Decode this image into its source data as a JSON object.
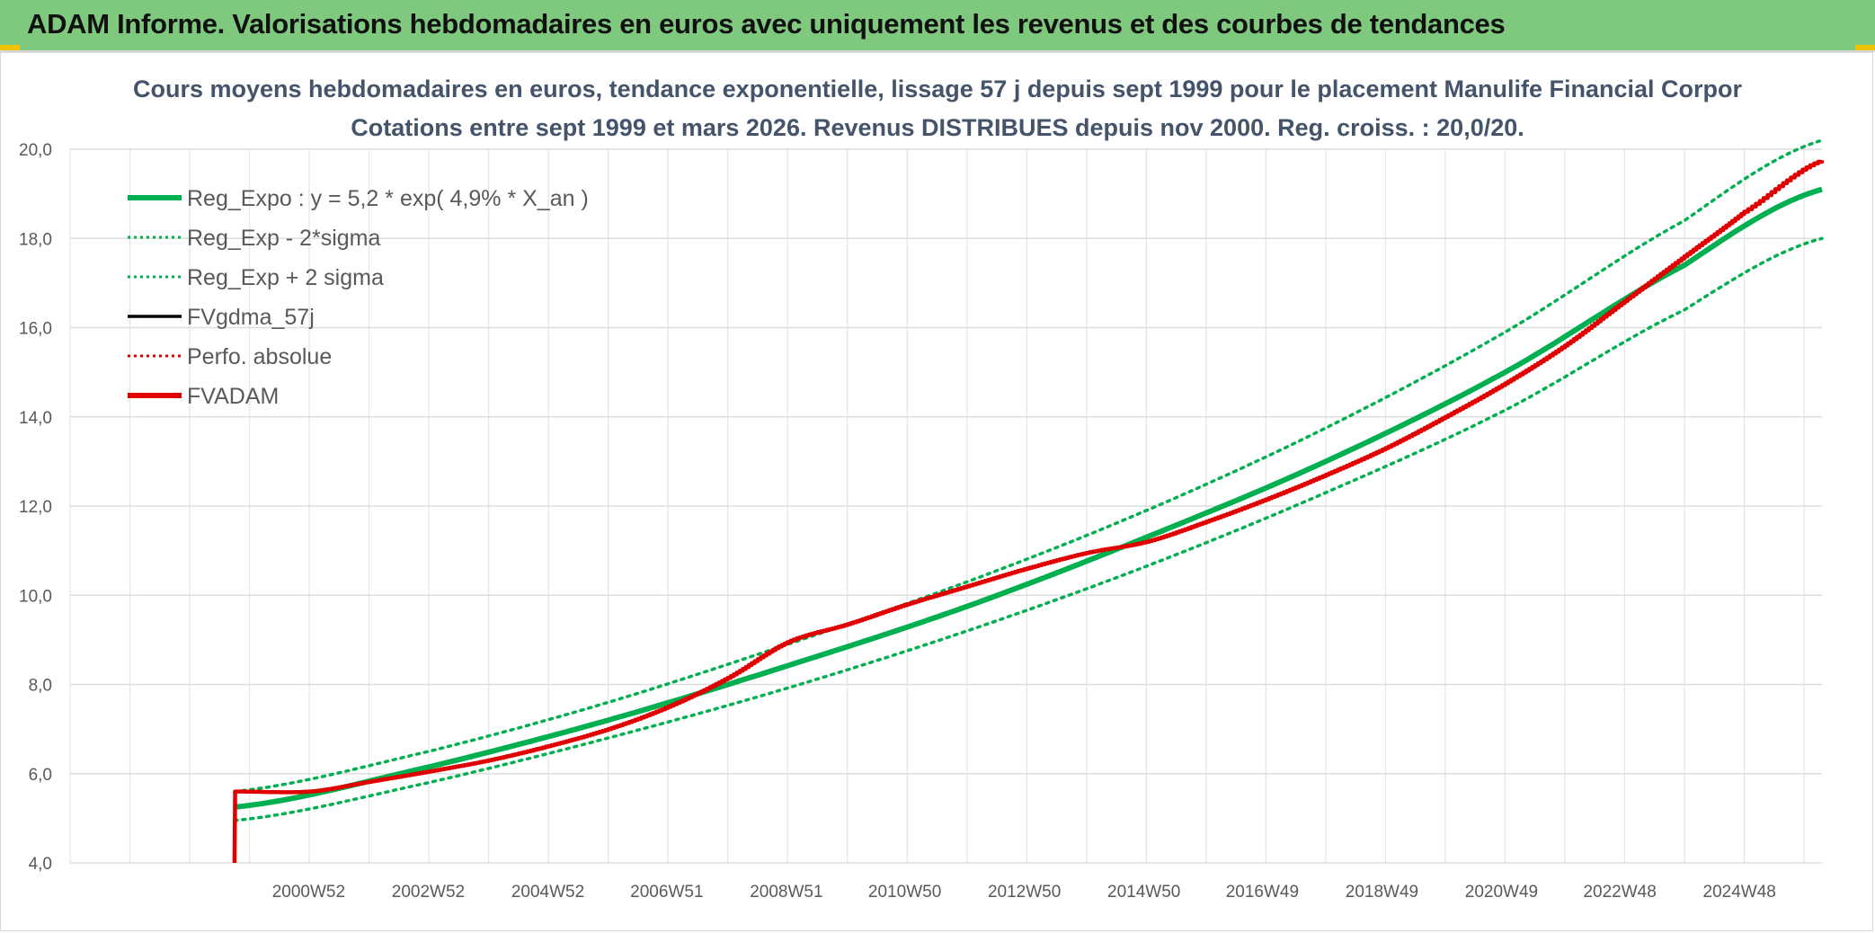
{
  "header": {
    "banner_title": "ADAM Informe. Valorisations hebdomadaires en euros avec uniquement les revenus et des courbes de tendances"
  },
  "colors": {
    "banner": "#7fc97f",
    "trend": "#00b050",
    "fvadam": "#e00000",
    "perfo": "#e00000",
    "fvgdma": "#000000",
    "title": "#44546a"
  },
  "chart_data": {
    "type": "line",
    "title": "Cours moyens hebdomadaires en euros, tendance exponentielle, lissage 57 j depuis sept 1999 pour le placement Manulife Financial Corpor",
    "subtitle": "Cotations entre sept 1999 et mars 2026. Revenus DISTRIBUES depuis nov 2000. Reg. croiss. : 20,0/20.",
    "xlabel": "",
    "ylabel": "",
    "ylim": [
      4,
      20
    ],
    "y_ticks": [
      "4,0",
      "6,0",
      "8,0",
      "10,0",
      "12,0",
      "14,0",
      "16,0",
      "18,0",
      "20,0"
    ],
    "x_tick_labels": [
      "2000W52",
      "2002W52",
      "2004W52",
      "2006W51",
      "2008W51",
      "2010W50",
      "2012W50",
      "2014W50",
      "2016W49",
      "2018W49",
      "2020W49",
      "2022W48",
      "2024W48"
    ],
    "x_tick_years": [
      2000.99,
      2002.99,
      2004.99,
      2006.98,
      2008.98,
      2010.96,
      2012.96,
      2014.96,
      2016.94,
      2018.94,
      2020.94,
      2022.92,
      2024.92
    ],
    "x_range_years": [
      1997.0,
      2026.3
    ],
    "grid": true,
    "legend_position": "top-left",
    "legend": [
      "Reg_Expo : y = 5,2 * exp( 4,9% *  X_an )",
      "Reg_Exp - 2*sigma",
      "Reg_Exp + 2 sigma",
      "FVgdma_57j",
      "Perfo. absolue",
      "FVADAM"
    ],
    "series": [
      {
        "name": "Reg_Expo : y = 5,2 * exp( 4,9% *  X_an )",
        "style": "solid-thick",
        "color": "#00b050",
        "x": [
          1999.75,
          2003,
          2006,
          2009,
          2012,
          2015,
          2018,
          2021,
          2024,
          2026.3
        ],
        "values": [
          5.25,
          6.15,
          7.2,
          8.42,
          9.75,
          11.3,
          13.0,
          15.0,
          17.4,
          19.1
        ]
      },
      {
        "name": "Reg_Exp - 2*sigma",
        "style": "dotted",
        "color": "#00b050",
        "x": [
          1999.75,
          2003,
          2006,
          2009,
          2012,
          2015,
          2018,
          2021,
          2024,
          2026.3
        ],
        "values": [
          4.95,
          5.8,
          6.8,
          7.92,
          9.2,
          10.65,
          12.3,
          14.15,
          16.4,
          18.0
        ]
      },
      {
        "name": "Reg_Exp + 2 sigma",
        "style": "dotted",
        "color": "#00b050",
        "x": [
          1999.75,
          2003,
          2006,
          2009,
          2012,
          2015,
          2018,
          2021,
          2024,
          2026.3
        ],
        "values": [
          5.6,
          6.5,
          7.6,
          8.9,
          10.3,
          11.9,
          13.75,
          15.9,
          18.4,
          20.2
        ]
      },
      {
        "name": "FVADAM",
        "style": "solid-thick",
        "color": "#e00000",
        "x": [
          1999.75,
          1999.76,
          2001,
          2002,
          2003,
          2004,
          2005,
          2006,
          2007,
          2008,
          2009,
          2010,
          2011,
          2012,
          2013,
          2014,
          2015,
          2016,
          2017,
          2018,
          2019,
          2020,
          2021,
          2022,
          2023,
          2024,
          2025,
          2026.3
        ],
        "values": [
          4.0,
          5.6,
          5.6,
          5.82,
          6.05,
          6.3,
          6.62,
          7.0,
          7.5,
          8.15,
          8.95,
          9.35,
          9.8,
          10.2,
          10.6,
          10.95,
          11.2,
          11.65,
          12.15,
          12.7,
          13.3,
          14.0,
          14.75,
          15.6,
          16.6,
          17.6,
          18.6,
          19.75
        ]
      },
      {
        "name": "Perfo. absolue",
        "style": "dotted",
        "color": "#e00000",
        "x": [],
        "values": []
      },
      {
        "name": "FVgdma_57j",
        "style": "solid",
        "color": "#000000",
        "x": [],
        "values": []
      }
    ]
  }
}
